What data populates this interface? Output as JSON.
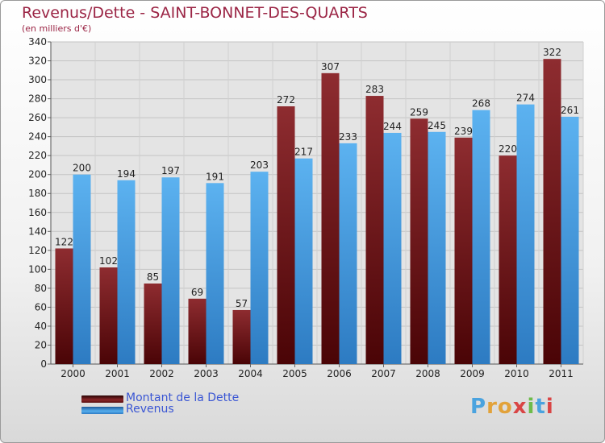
{
  "header": {
    "title": "Revenus/Dette - SAINT-BONNET-DES-QUARTS",
    "subtitle": "(en milliers d'€)"
  },
  "legend": {
    "debt_label": "Montant de la Dette",
    "revenue_label": "Revenus"
  },
  "logo": {
    "letters": [
      "P",
      "r",
      "o",
      "x",
      "i",
      "t",
      "i"
    ],
    "colors": [
      "#4aa3df",
      "#e2a23a",
      "#e2a23a",
      "#d94545",
      "#6dbb4a",
      "#4aa3df",
      "#d94545"
    ]
  },
  "colors": {
    "debt": "#7a1f22",
    "revenue": "#4da6e8",
    "title": "#9b2545",
    "legend_text": "#3a56d4"
  },
  "chart_data": {
    "type": "bar",
    "categories": [
      "2000",
      "2001",
      "2002",
      "2003",
      "2004",
      "2005",
      "2006",
      "2007",
      "2008",
      "2009",
      "2010",
      "2011"
    ],
    "series": [
      {
        "name": "Montant de la Dette",
        "values": [
          122,
          102,
          85,
          69,
          57,
          272,
          307,
          283,
          259,
          239,
          220,
          322
        ]
      },
      {
        "name": "Revenus",
        "values": [
          200,
          194,
          197,
          191,
          203,
          217,
          233,
          244,
          245,
          268,
          274,
          261
        ]
      }
    ],
    "ylim": [
      0,
      340
    ],
    "ytick_step": 20,
    "grid": true,
    "legend_position": "bottom-left"
  }
}
